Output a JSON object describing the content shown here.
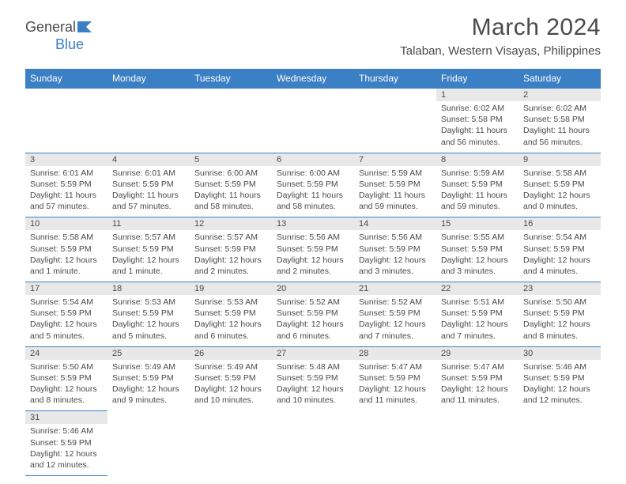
{
  "brand": {
    "part1": "General",
    "part2": "Blue"
  },
  "title": "March 2024",
  "location": "Talaban, Western Visayas, Philippines",
  "colors": {
    "header_bg": "#3b7fc4",
    "header_text": "#ffffff",
    "daynum_bg": "#e8e8e8",
    "text": "#4a4a4a",
    "rule": "#3b7fc4"
  },
  "weekdays": [
    "Sunday",
    "Monday",
    "Tuesday",
    "Wednesday",
    "Thursday",
    "Friday",
    "Saturday"
  ],
  "weeks": [
    [
      null,
      null,
      null,
      null,
      null,
      {
        "n": "1",
        "sr": "Sunrise: 6:02 AM",
        "ss": "Sunset: 5:58 PM",
        "dl": "Daylight: 11 hours and 56 minutes."
      },
      {
        "n": "2",
        "sr": "Sunrise: 6:02 AM",
        "ss": "Sunset: 5:58 PM",
        "dl": "Daylight: 11 hours and 56 minutes."
      }
    ],
    [
      {
        "n": "3",
        "sr": "Sunrise: 6:01 AM",
        "ss": "Sunset: 5:59 PM",
        "dl": "Daylight: 11 hours and 57 minutes."
      },
      {
        "n": "4",
        "sr": "Sunrise: 6:01 AM",
        "ss": "Sunset: 5:59 PM",
        "dl": "Daylight: 11 hours and 57 minutes."
      },
      {
        "n": "5",
        "sr": "Sunrise: 6:00 AM",
        "ss": "Sunset: 5:59 PM",
        "dl": "Daylight: 11 hours and 58 minutes."
      },
      {
        "n": "6",
        "sr": "Sunrise: 6:00 AM",
        "ss": "Sunset: 5:59 PM",
        "dl": "Daylight: 11 hours and 58 minutes."
      },
      {
        "n": "7",
        "sr": "Sunrise: 5:59 AM",
        "ss": "Sunset: 5:59 PM",
        "dl": "Daylight: 11 hours and 59 minutes."
      },
      {
        "n": "8",
        "sr": "Sunrise: 5:59 AM",
        "ss": "Sunset: 5:59 PM",
        "dl": "Daylight: 11 hours and 59 minutes."
      },
      {
        "n": "9",
        "sr": "Sunrise: 5:58 AM",
        "ss": "Sunset: 5:59 PM",
        "dl": "Daylight: 12 hours and 0 minutes."
      }
    ],
    [
      {
        "n": "10",
        "sr": "Sunrise: 5:58 AM",
        "ss": "Sunset: 5:59 PM",
        "dl": "Daylight: 12 hours and 1 minute."
      },
      {
        "n": "11",
        "sr": "Sunrise: 5:57 AM",
        "ss": "Sunset: 5:59 PM",
        "dl": "Daylight: 12 hours and 1 minute."
      },
      {
        "n": "12",
        "sr": "Sunrise: 5:57 AM",
        "ss": "Sunset: 5:59 PM",
        "dl": "Daylight: 12 hours and 2 minutes."
      },
      {
        "n": "13",
        "sr": "Sunrise: 5:56 AM",
        "ss": "Sunset: 5:59 PM",
        "dl": "Daylight: 12 hours and 2 minutes."
      },
      {
        "n": "14",
        "sr": "Sunrise: 5:56 AM",
        "ss": "Sunset: 5:59 PM",
        "dl": "Daylight: 12 hours and 3 minutes."
      },
      {
        "n": "15",
        "sr": "Sunrise: 5:55 AM",
        "ss": "Sunset: 5:59 PM",
        "dl": "Daylight: 12 hours and 3 minutes."
      },
      {
        "n": "16",
        "sr": "Sunrise: 5:54 AM",
        "ss": "Sunset: 5:59 PM",
        "dl": "Daylight: 12 hours and 4 minutes."
      }
    ],
    [
      {
        "n": "17",
        "sr": "Sunrise: 5:54 AM",
        "ss": "Sunset: 5:59 PM",
        "dl": "Daylight: 12 hours and 5 minutes."
      },
      {
        "n": "18",
        "sr": "Sunrise: 5:53 AM",
        "ss": "Sunset: 5:59 PM",
        "dl": "Daylight: 12 hours and 5 minutes."
      },
      {
        "n": "19",
        "sr": "Sunrise: 5:53 AM",
        "ss": "Sunset: 5:59 PM",
        "dl": "Daylight: 12 hours and 6 minutes."
      },
      {
        "n": "20",
        "sr": "Sunrise: 5:52 AM",
        "ss": "Sunset: 5:59 PM",
        "dl": "Daylight: 12 hours and 6 minutes."
      },
      {
        "n": "21",
        "sr": "Sunrise: 5:52 AM",
        "ss": "Sunset: 5:59 PM",
        "dl": "Daylight: 12 hours and 7 minutes."
      },
      {
        "n": "22",
        "sr": "Sunrise: 5:51 AM",
        "ss": "Sunset: 5:59 PM",
        "dl": "Daylight: 12 hours and 7 minutes."
      },
      {
        "n": "23",
        "sr": "Sunrise: 5:50 AM",
        "ss": "Sunset: 5:59 PM",
        "dl": "Daylight: 12 hours and 8 minutes."
      }
    ],
    [
      {
        "n": "24",
        "sr": "Sunrise: 5:50 AM",
        "ss": "Sunset: 5:59 PM",
        "dl": "Daylight: 12 hours and 8 minutes."
      },
      {
        "n": "25",
        "sr": "Sunrise: 5:49 AM",
        "ss": "Sunset: 5:59 PM",
        "dl": "Daylight: 12 hours and 9 minutes."
      },
      {
        "n": "26",
        "sr": "Sunrise: 5:49 AM",
        "ss": "Sunset: 5:59 PM",
        "dl": "Daylight: 12 hours and 10 minutes."
      },
      {
        "n": "27",
        "sr": "Sunrise: 5:48 AM",
        "ss": "Sunset: 5:59 PM",
        "dl": "Daylight: 12 hours and 10 minutes."
      },
      {
        "n": "28",
        "sr": "Sunrise: 5:47 AM",
        "ss": "Sunset: 5:59 PM",
        "dl": "Daylight: 12 hours and 11 minutes."
      },
      {
        "n": "29",
        "sr": "Sunrise: 5:47 AM",
        "ss": "Sunset: 5:59 PM",
        "dl": "Daylight: 12 hours and 11 minutes."
      },
      {
        "n": "30",
        "sr": "Sunrise: 5:46 AM",
        "ss": "Sunset: 5:59 PM",
        "dl": "Daylight: 12 hours and 12 minutes."
      }
    ],
    [
      {
        "n": "31",
        "sr": "Sunrise: 5:46 AM",
        "ss": "Sunset: 5:59 PM",
        "dl": "Daylight: 12 hours and 12 minutes."
      },
      null,
      null,
      null,
      null,
      null,
      null
    ]
  ]
}
